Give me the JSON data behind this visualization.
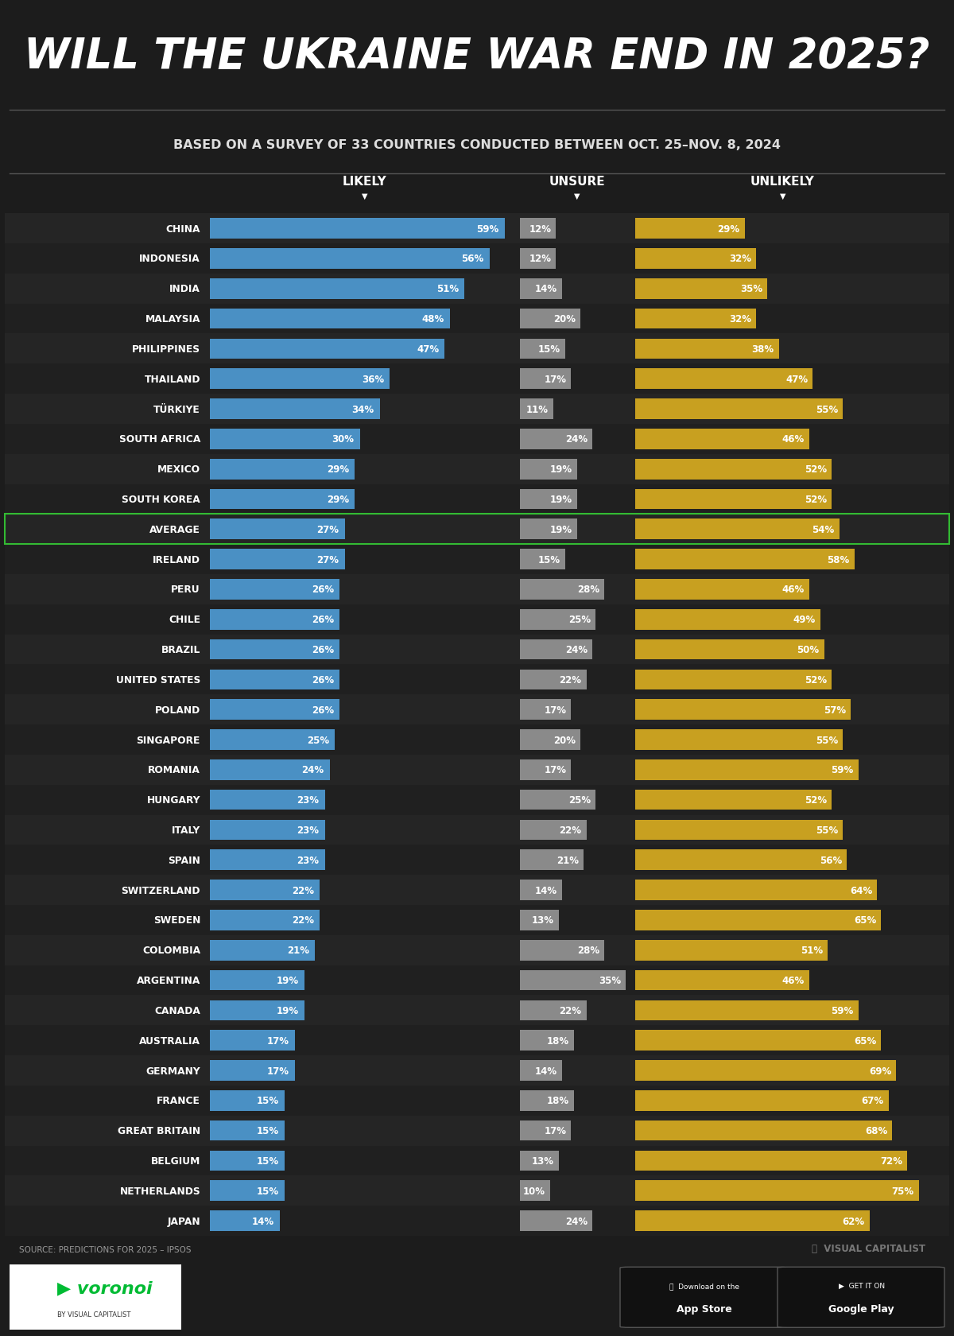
{
  "title": "WILL THE UKRAINE WAR END IN 2025?",
  "subtitle": "BASED ON A SURVEY OF 33 COUNTRIES CONDUCTED BETWEEN OCT. 25–NOV. 8, 2024",
  "source": "SOURCE: PREDICTIONS FOR 2025 – IPSOS",
  "countries": [
    "CHINA",
    "INDONESIA",
    "INDIA",
    "MALAYSIA",
    "PHILIPPINES",
    "THAILAND",
    "TÜRKIYE",
    "SOUTH AFRICA",
    "MEXICO",
    "SOUTH KOREA",
    "AVERAGE",
    "IRELAND",
    "PERU",
    "CHILE",
    "BRAZIL",
    "UNITED STATES",
    "POLAND",
    "SINGAPORE",
    "ROMANIA",
    "HUNGARY",
    "ITALY",
    "SPAIN",
    "SWITZERLAND",
    "SWEDEN",
    "COLOMBIA",
    "ARGENTINA",
    "CANADA",
    "AUSTRALIA",
    "GERMANY",
    "FRANCE",
    "GREAT BRITAIN",
    "BELGIUM",
    "NETHERLANDS",
    "JAPAN"
  ],
  "likely": [
    59,
    56,
    51,
    48,
    47,
    36,
    34,
    30,
    29,
    29,
    27,
    27,
    26,
    26,
    26,
    26,
    26,
    25,
    24,
    23,
    23,
    23,
    22,
    22,
    21,
    19,
    19,
    17,
    17,
    15,
    15,
    15,
    15,
    14
  ],
  "unsure": [
    12,
    12,
    14,
    20,
    15,
    17,
    11,
    24,
    19,
    19,
    19,
    15,
    28,
    25,
    24,
    22,
    17,
    20,
    17,
    25,
    22,
    21,
    14,
    13,
    28,
    35,
    22,
    18,
    14,
    18,
    17,
    13,
    10,
    24
  ],
  "unlikely": [
    29,
    32,
    35,
    32,
    38,
    47,
    55,
    46,
    52,
    52,
    54,
    58,
    46,
    49,
    50,
    52,
    57,
    55,
    59,
    52,
    55,
    56,
    64,
    65,
    51,
    46,
    59,
    65,
    69,
    67,
    68,
    72,
    75,
    62
  ],
  "bg_color": "#1c1c1c",
  "likely_color": "#4a90c4",
  "unsure_color": "#8a8a8a",
  "unlikely_color": "#c8a020",
  "text_color": "#ffffff",
  "avg_row": 10,
  "footer_color": "#00cc44",
  "max_likely": 62,
  "max_unsure": 38,
  "max_unlikely": 78
}
